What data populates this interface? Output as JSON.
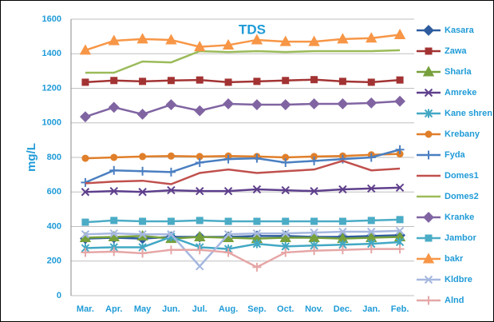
{
  "chart_data": {
    "type": "line",
    "title": "TDS",
    "y_label": "mg/L",
    "categories": [
      "Mar.",
      "Apr.",
      "May",
      "Jun.",
      "Jul.",
      "Aug.",
      "Sep.",
      "Oct.",
      "Nov.",
      "Dec.",
      "Jan.",
      "Feb."
    ],
    "ylim": [
      0,
      1600
    ],
    "yticks": [
      0,
      200,
      400,
      600,
      800,
      1000,
      1200,
      1400,
      1600
    ],
    "grid": true,
    "legend": "right",
    "series": [
      {
        "name": "Kasara",
        "color": "#2e5c9e",
        "marker": "diamond",
        "values": [
          330,
          335,
          330,
          340,
          340,
          340,
          345,
          345,
          340,
          340,
          345,
          350
        ]
      },
      {
        "name": "Zawa",
        "color": "#a33333",
        "marker": "square",
        "values": [
          1235,
          1245,
          1240,
          1245,
          1248,
          1235,
          1240,
          1245,
          1250,
          1240,
          1235,
          1248
        ]
      },
      {
        "name": "Sharla",
        "color": "#77a03c",
        "marker": "triangle",
        "values": [
          335,
          340,
          345,
          330,
          340,
          335,
          330,
          335,
          335,
          330,
          335,
          340
        ]
      },
      {
        "name": "Amreke",
        "color": "#5e3f8c",
        "marker": "x",
        "values": [
          600,
          605,
          600,
          610,
          605,
          605,
          615,
          610,
          605,
          615,
          620,
          625
        ]
      },
      {
        "name": "Kane shren",
        "color": "#42a8c4",
        "marker": "star",
        "values": [
          275,
          280,
          280,
          340,
          280,
          270,
          300,
          285,
          290,
          295,
          300,
          310
        ]
      },
      {
        "name": "Krebany",
        "color": "#e07f2a",
        "marker": "circle",
        "values": [
          795,
          800,
          805,
          808,
          805,
          808,
          805,
          800,
          805,
          808,
          815,
          820
        ]
      },
      {
        "name": "Fyda",
        "color": "#4a7fc1",
        "marker": "plus",
        "values": [
          655,
          725,
          720,
          715,
          770,
          790,
          795,
          770,
          780,
          790,
          800,
          845
        ]
      },
      {
        "name": "Domes1",
        "color": "#c0504d",
        "marker": "none",
        "values": [
          650,
          660,
          665,
          645,
          710,
          730,
          710,
          720,
          730,
          780,
          725,
          735
        ]
      },
      {
        "name": "Domes2",
        "color": "#9bbb59",
        "marker": "none",
        "values": [
          1290,
          1290,
          1355,
          1350,
          1415,
          1410,
          1415,
          1410,
          1415,
          1415,
          1415,
          1420
        ]
      },
      {
        "name": "Kranke",
        "color": "#8064a2",
        "marker": "diamond",
        "values": [
          1035,
          1090,
          1050,
          1105,
          1070,
          1110,
          1105,
          1105,
          1110,
          1110,
          1115,
          1125
        ]
      },
      {
        "name": "Jambor",
        "color": "#4bacc6",
        "marker": "square",
        "values": [
          425,
          435,
          430,
          430,
          435,
          430,
          430,
          430,
          430,
          430,
          435,
          440
        ]
      },
      {
        "name": "bakr",
        "color": "#f79646",
        "marker": "triangle",
        "values": [
          1420,
          1475,
          1485,
          1480,
          1440,
          1450,
          1480,
          1470,
          1470,
          1485,
          1490,
          1510
        ]
      },
      {
        "name": "Kldbre",
        "color": "#a6b8e0",
        "marker": "x",
        "values": [
          355,
          360,
          355,
          355,
          170,
          355,
          360,
          360,
          365,
          370,
          370,
          375
        ]
      },
      {
        "name": "Alnd",
        "color": "#e6a6a6",
        "marker": "plus",
        "values": [
          250,
          255,
          245,
          265,
          265,
          250,
          165,
          250,
          260,
          265,
          270,
          270
        ]
      }
    ]
  }
}
